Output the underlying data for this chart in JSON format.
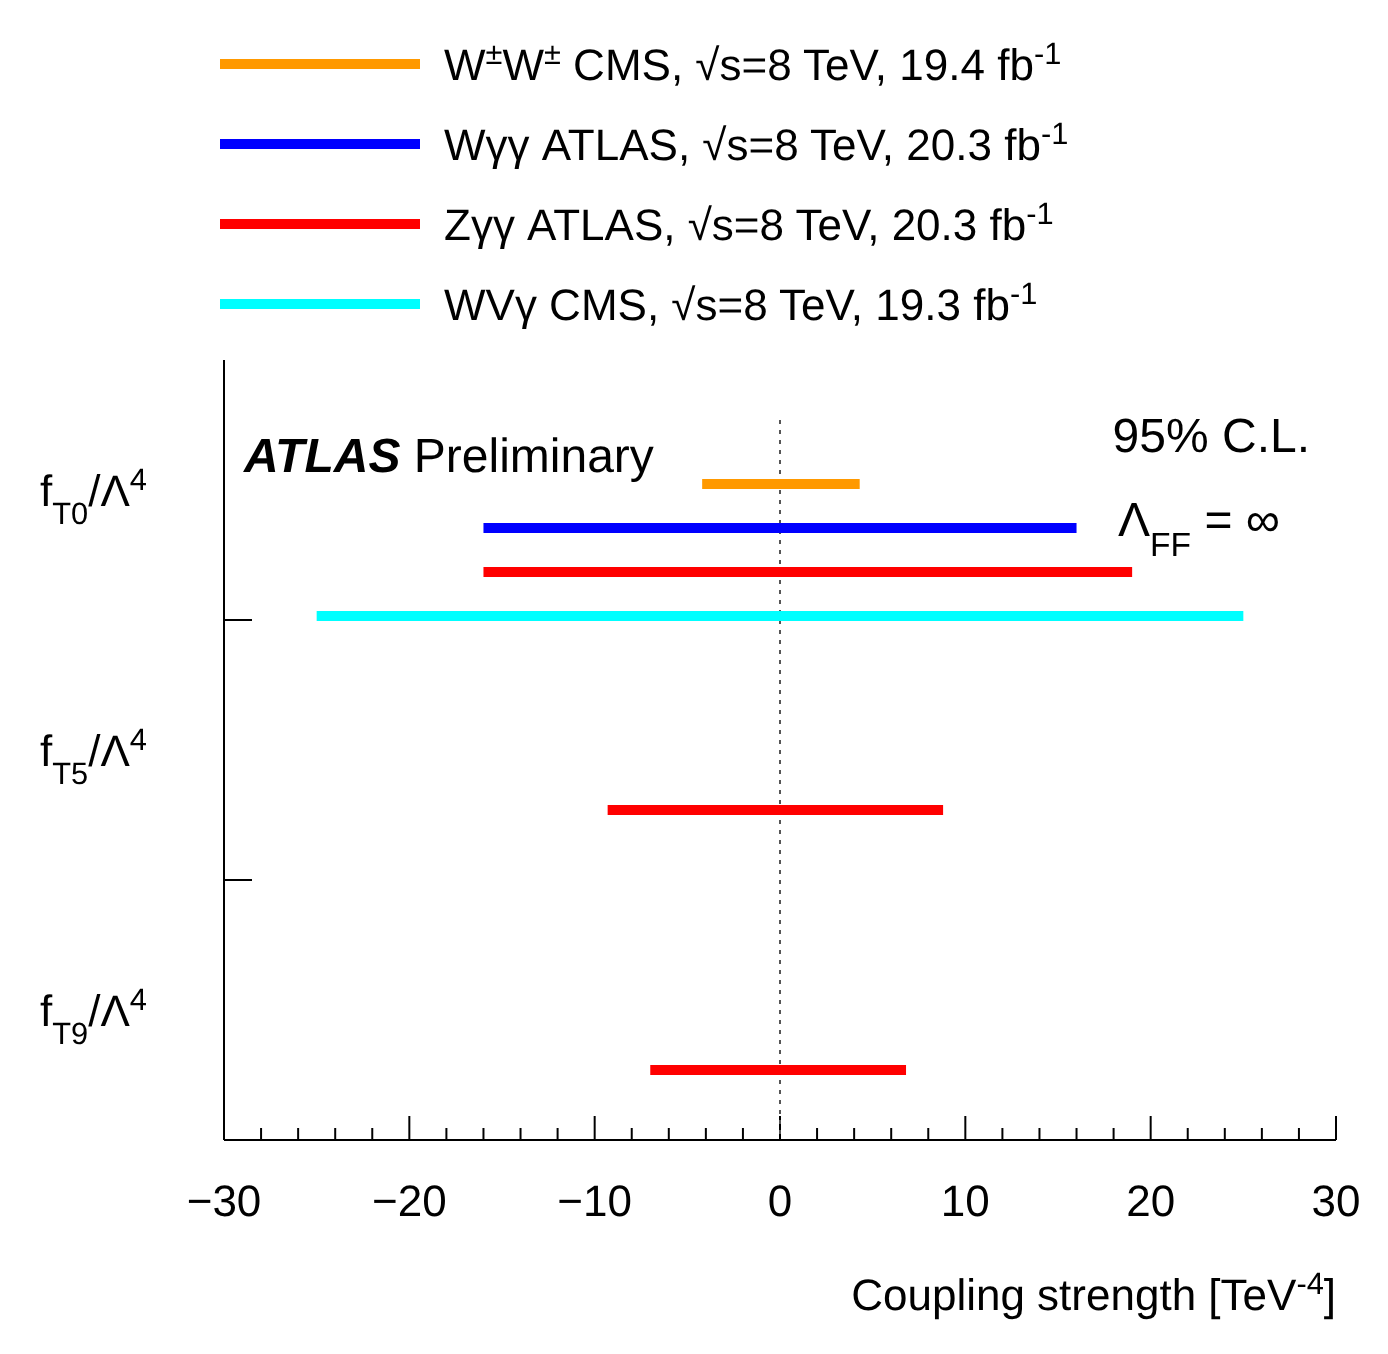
{
  "chart_data": {
    "type": "bar",
    "orientation": "horizontal",
    "xlabel": "Coupling strength [TeV$^{-4}$]",
    "categories": [
      "f$_{T0}$/Λ$^{4}$",
      "f$_{T5}$/Λ$^{4}$",
      "f$_{T9}$/Λ$^{4}$"
    ],
    "series": [
      {
        "name": "W$^{±}$W$^{±}$ CMS, √s=8 TeV, 19.4 fb$^{-1}$",
        "color": "#ff9900",
        "base": [
          -4.2,
          null,
          null
        ],
        "values": [
          8.5,
          null,
          null
        ]
      },
      {
        "name": "Wγγ ATLAS, √s=8 TeV, 20.3 fb$^{-1}$",
        "color": "#0000ff",
        "base": [
          -16,
          null,
          null
        ],
        "values": [
          32,
          null,
          null
        ]
      },
      {
        "name": "Zγγ ATLAS, √s=8 TeV, 20.3 fb$^{-1}$",
        "color": "#ff0000",
        "base": [
          -16,
          -9.3,
          -7.0
        ],
        "values": [
          35,
          18.1,
          13.8
        ]
      },
      {
        "name": "WVγ CMS, √s=8 TeV, 19.3 fb$^{-1}$",
        "color": "#00ffff",
        "base": [
          -25,
          null,
          null
        ],
        "values": [
          50,
          null,
          null
        ]
      }
    ],
    "xlim": [
      -30,
      30
    ],
    "xticks": [
      {
        "value": -30,
        "label": "−30"
      },
      {
        "value": -20,
        "label": "−20"
      },
      {
        "value": -10,
        "label": "−10"
      },
      0,
      10,
      20,
      30
    ],
    "ref_lines": [
      {
        "axis": "x",
        "value": 0,
        "line_style": "dotted",
        "color": "#555555"
      }
    ],
    "legend": "top",
    "annotations": [
      "ATLAS Preliminary",
      "95% C.L.",
      "Λ$_{FF}$ = ∞"
    ]
  }
}
